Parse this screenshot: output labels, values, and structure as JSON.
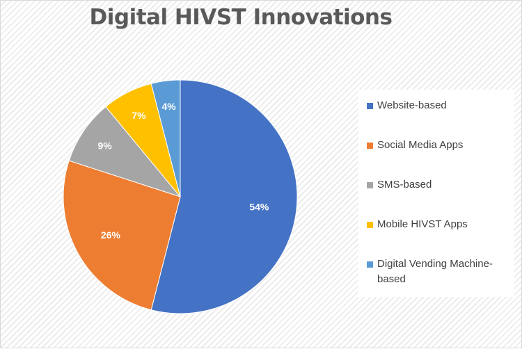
{
  "chart_data": {
    "type": "pie",
    "title": "Digital HIVST Innovations",
    "legend_position": "right",
    "slices": [
      {
        "label": "Website-based",
        "value": 54,
        "display": "54%",
        "color": "#4472c4"
      },
      {
        "label": "Social Media Apps",
        "value": 26,
        "display": "26%",
        "color": "#ed7d31"
      },
      {
        "label": "SMS-based",
        "value": 9,
        "display": "9%",
        "color": "#a5a5a5"
      },
      {
        "label": "Mobile HIVST Apps",
        "value": 7,
        "display": "7%",
        "color": "#ffc000"
      },
      {
        "label": "Digital Vending Machine-based",
        "value": 4,
        "display": "4%",
        "color": "#5b9bd5"
      }
    ]
  }
}
